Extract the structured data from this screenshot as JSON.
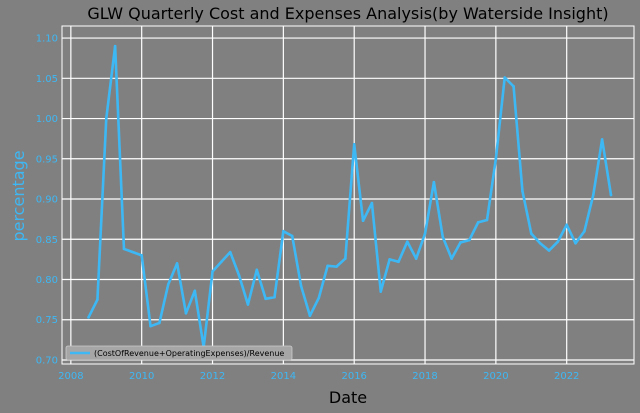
{
  "chart_data": {
    "type": "line",
    "title": "GLW Quarterly Cost and Expenses Analysis(by Waterside Insight)",
    "xlabel": "Date",
    "ylabel": "percentage",
    "xlim": [
      2007.75,
      2023.9
    ],
    "ylim": [
      0.695,
      1.115
    ],
    "x_ticks": [
      "2008",
      "2010",
      "2012",
      "2014",
      "2016",
      "2018",
      "2020",
      "2022"
    ],
    "y_ticks": [
      "0.70",
      "0.75",
      "0.80",
      "0.85",
      "0.90",
      "0.95",
      "1.00",
      "1.05",
      "1.10"
    ],
    "grid": true,
    "legend_position": "lower-left",
    "colors": {
      "background": "#808080",
      "line": "#3db8f5",
      "grid": "#ffffff",
      "title": "#000000"
    },
    "series": [
      {
        "name": "(CostOfRevenue+OperatingExpenses)/Revenue",
        "x": [
          2008.5,
          2008.75,
          2009.0,
          2009.25,
          2009.5,
          2009.75,
          2010.0,
          2010.25,
          2010.5,
          2010.75,
          2011.0,
          2011.25,
          2011.5,
          2011.75,
          2012.0,
          2012.25,
          2012.5,
          2012.75,
          2013.0,
          2013.25,
          2013.5,
          2013.75,
          2014.0,
          2014.25,
          2014.5,
          2014.75,
          2015.0,
          2015.25,
          2015.5,
          2015.75,
          2016.0,
          2016.25,
          2016.5,
          2016.75,
          2017.0,
          2017.25,
          2017.5,
          2017.75,
          2018.0,
          2018.25,
          2018.5,
          2018.75,
          2019.0,
          2019.25,
          2019.5,
          2019.75,
          2020.0,
          2020.25,
          2020.5,
          2020.75,
          2021.0,
          2021.25,
          2021.5,
          2021.75,
          2022.0,
          2022.25,
          2022.5,
          2022.75,
          2023.0,
          2023.25
        ],
        "values": [
          0.753,
          0.775,
          1.0,
          1.09,
          0.838,
          0.834,
          0.83,
          0.742,
          0.746,
          0.794,
          0.82,
          0.758,
          0.786,
          0.716,
          0.81,
          0.822,
          0.834,
          0.805,
          0.769,
          0.812,
          0.776,
          0.778,
          0.86,
          0.854,
          0.792,
          0.755,
          0.777,
          0.817,
          0.816,
          0.826,
          0.968,
          0.873,
          0.895,
          0.785,
          0.825,
          0.822,
          0.847,
          0.826,
          0.857,
          0.921,
          0.853,
          0.826,
          0.846,
          0.849,
          0.871,
          0.874,
          0.95,
          1.051,
          1.04,
          0.91,
          0.857,
          0.845,
          0.836,
          0.847,
          0.868,
          0.845,
          0.86,
          0.905,
          0.974,
          0.905
        ]
      }
    ]
  }
}
